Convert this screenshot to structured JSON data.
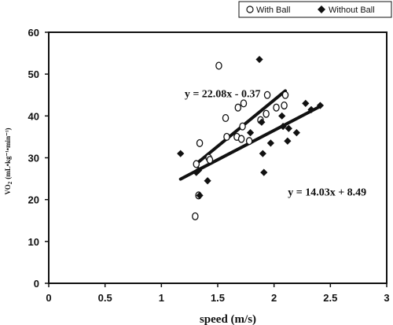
{
  "chart_data": {
    "type": "scatter",
    "xlabel": "speed (m/s)",
    "ylabel": "VO",
    "ylabel_sub": "2",
    "ylabel_units": "(mL•kg⁻¹•min⁻¹)",
    "xlim": [
      0,
      3
    ],
    "ylim": [
      0,
      60
    ],
    "xticks": [
      "0",
      "0.5",
      "1",
      "1.5",
      "2",
      "2.5",
      "3"
    ],
    "yticks": [
      "0",
      "10",
      "20",
      "30",
      "40",
      "50",
      "60"
    ],
    "grid": false,
    "legend_position": "top-right",
    "series": [
      {
        "name": "With Ball",
        "marker": "open-circle",
        "color": "#111111",
        "points": [
          [
            1.3,
            16.0
          ],
          [
            1.31,
            28.5
          ],
          [
            1.33,
            21.0
          ],
          [
            1.34,
            33.5
          ],
          [
            1.42,
            30.0
          ],
          [
            1.43,
            29.5
          ],
          [
            1.51,
            52.0
          ],
          [
            1.57,
            39.5
          ],
          [
            1.58,
            35.0
          ],
          [
            1.67,
            35.0
          ],
          [
            1.68,
            42.0
          ],
          [
            1.71,
            34.5
          ],
          [
            1.72,
            37.5
          ],
          [
            1.73,
            43.0
          ],
          [
            1.78,
            34.0
          ],
          [
            1.88,
            39.0
          ],
          [
            1.93,
            40.5
          ],
          [
            1.94,
            45.0
          ],
          [
            2.02,
            42.0
          ],
          [
            2.09,
            42.5
          ],
          [
            2.1,
            45.0
          ]
        ],
        "trendline": {
          "slope": 22.08,
          "intercept": -0.37,
          "x_range": [
            1.3,
            2.1
          ]
        }
      },
      {
        "name": "Without Ball",
        "marker": "filled-diamond",
        "color": "#111111",
        "points": [
          [
            1.17,
            31.0
          ],
          [
            1.31,
            26.5
          ],
          [
            1.33,
            27.0
          ],
          [
            1.34,
            21.0
          ],
          [
            1.41,
            24.5
          ],
          [
            1.79,
            36.0
          ],
          [
            1.87,
            53.5
          ],
          [
            1.89,
            38.5
          ],
          [
            1.9,
            31.0
          ],
          [
            1.91,
            26.5
          ],
          [
            1.97,
            33.5
          ],
          [
            2.07,
            40.0
          ],
          [
            2.08,
            37.5
          ],
          [
            2.12,
            34.0
          ],
          [
            2.13,
            37.0
          ],
          [
            2.2,
            36.0
          ],
          [
            2.28,
            43.0
          ],
          [
            2.33,
            41.5
          ],
          [
            2.41,
            42.5
          ]
        ],
        "trendline": {
          "slope": 14.03,
          "intercept": 8.49,
          "x_range": [
            1.17,
            2.4
          ]
        }
      }
    ],
    "annotations": [
      {
        "text": "y = 22.08x - 0.37",
        "x": 1.88,
        "y": 44.5
      },
      {
        "text": "y = 14.03x + 8.49",
        "x": 2.82,
        "y": 21.0
      }
    ]
  }
}
